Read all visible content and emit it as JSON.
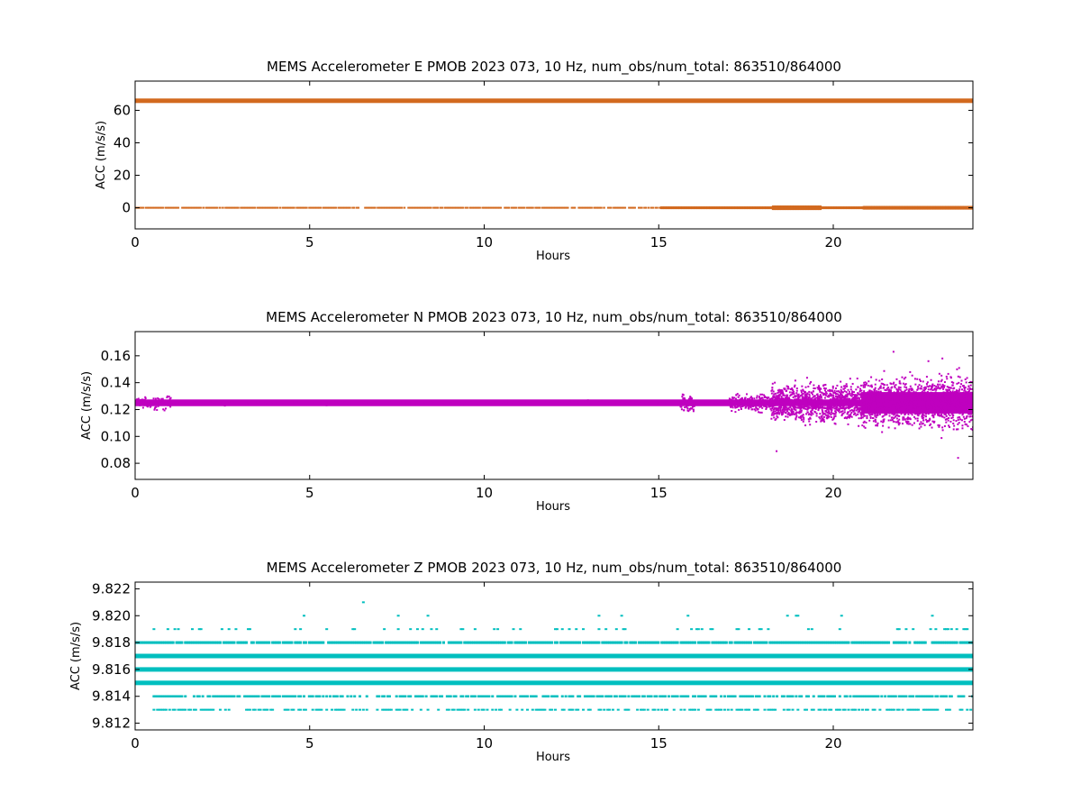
{
  "chart_data": [
    {
      "type": "scatter",
      "title": "MEMS Accelerometer E PMOB 2023 073, 10 Hz, num_obs/num_total: 863510/864000",
      "xlabel": "Hours",
      "ylabel": "ACC (m/s/s)",
      "xlim": [
        0,
        24
      ],
      "ylim": [
        -13,
        78
      ],
      "xticks": [
        "0",
        "5",
        "10",
        "15",
        "20"
      ],
      "yticks": [
        "0",
        "20",
        "40",
        "60"
      ],
      "grid": false,
      "color": "#d2691e",
      "series": [
        {
          "label": "",
          "levels": [
            65.9,
            0.0
          ]
        }
      ]
    },
    {
      "type": "scatter",
      "title": "MEMS Accelerometer N PMOB 2023 073, 10 Hz, num_obs/num_total: 863510/864000",
      "xlabel": "Hours",
      "ylabel": "ACC (m/s/s)",
      "xlim": [
        0,
        24
      ],
      "ylim": [
        0.068,
        0.178
      ],
      "xticks": [
        "0",
        "5",
        "10",
        "15",
        "20"
      ],
      "yticks": [
        "0.08",
        "0.10",
        "0.12",
        "0.14",
        "0.16"
      ],
      "grid": false,
      "color": "#bf00bf",
      "baseline": 0.125,
      "noise_bursts": [
        {
          "x": [
            0.0,
            1.0
          ],
          "spread": 0.008
        },
        {
          "x": [
            15.6,
            16.0
          ],
          "spread": 0.012
        },
        {
          "x": [
            17.0,
            18.2
          ],
          "spread": 0.01
        },
        {
          "x": [
            18.2,
            20.8
          ],
          "spread": 0.022
        },
        {
          "x": [
            20.8,
            24.0
          ],
          "spread": 0.03
        }
      ]
    },
    {
      "type": "scatter",
      "title": "MEMS Accelerometer Z PMOB 2023 073, 10 Hz, num_obs/num_total: 863510/864000",
      "xlabel": "Hours",
      "ylabel": "ACC (m/s/s)",
      "xlim": [
        0,
        24
      ],
      "ylim": [
        9.8115,
        9.8225
      ],
      "xticks": [
        "0",
        "5",
        "10",
        "15",
        "20"
      ],
      "yticks": [
        "9.812",
        "9.814",
        "9.816",
        "9.818",
        "9.820",
        "9.822"
      ],
      "grid": false,
      "color": "#00bfbf",
      "quantized_levels": [
        9.813,
        9.814,
        9.815,
        9.816,
        9.817,
        9.818,
        9.819,
        9.82,
        9.821
      ]
    }
  ]
}
